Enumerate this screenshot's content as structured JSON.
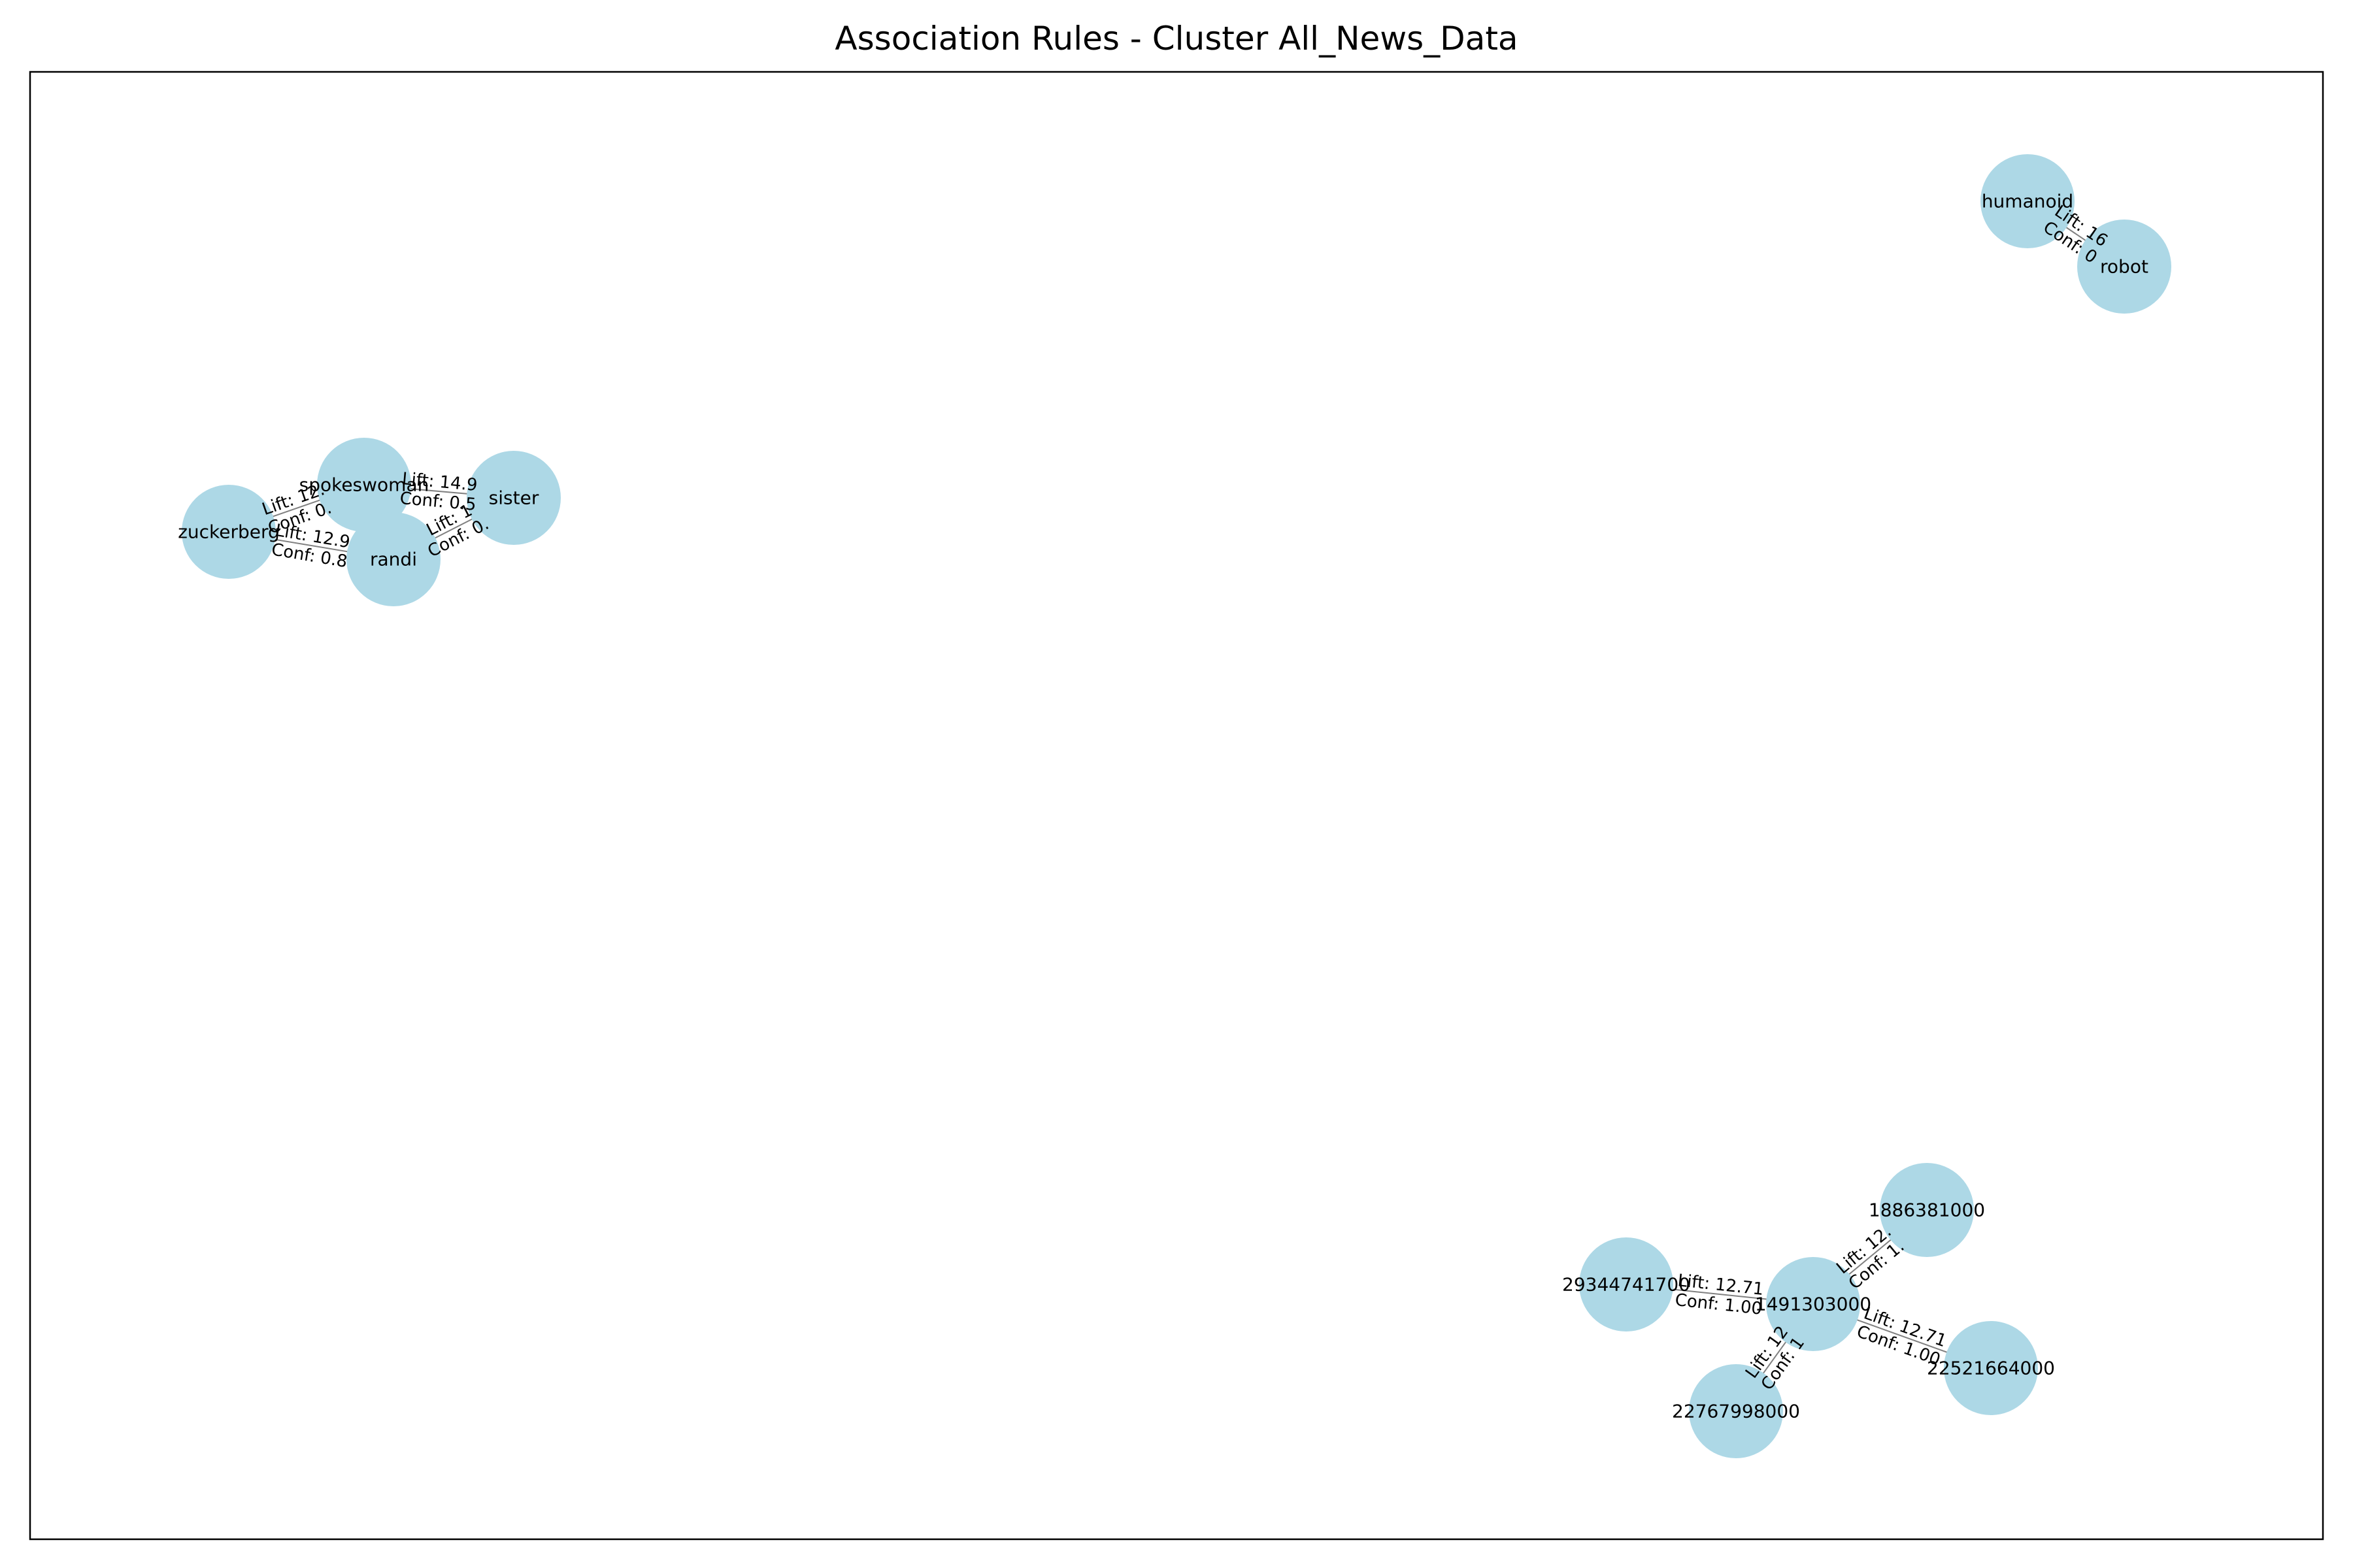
{
  "title": "Association Rules - Cluster All_News_Data",
  "colors": {
    "node_fill": "#add8e6",
    "edge": "#808080",
    "frame": "#000000",
    "background": "#ffffff"
  },
  "nodes": [
    {
      "id": "humanoid",
      "label": "humanoid"
    },
    {
      "id": "robot",
      "label": "robot"
    },
    {
      "id": "spokeswoman",
      "label": "spokeswoman"
    },
    {
      "id": "sister",
      "label": "sister"
    },
    {
      "id": "zuckerberg",
      "label": "zuckerberg"
    },
    {
      "id": "randi",
      "label": "randi"
    },
    {
      "id": "n1886381000",
      "label": "1886381000"
    },
    {
      "id": "n29344741700",
      "label": "29344741700"
    },
    {
      "id": "n1491303000",
      "label": "1491303000"
    },
    {
      "id": "n22521664000",
      "label": "22521664000"
    },
    {
      "id": "n22767998000",
      "label": "22767998000"
    }
  ],
  "edges": [
    {
      "source": "humanoid",
      "target": "robot",
      "lift_text": "Lift: 16",
      "conf_text": "Conf: 0"
    },
    {
      "source": "spokeswoman",
      "target": "sister",
      "lift_text": "Lift: 14.9",
      "conf_text": "Conf: 0.5"
    },
    {
      "source": "zuckerberg",
      "target": "spokeswoman",
      "lift_text": "Lift: 12.",
      "conf_text": "Conf: 0."
    },
    {
      "source": "zuckerberg",
      "target": "randi",
      "lift_text": "Lift: 12.9",
      "conf_text": "Conf: 0.8"
    },
    {
      "source": "randi",
      "target": "sister",
      "lift_text": "Lift: 1",
      "conf_text": "Conf: 0."
    },
    {
      "source": "n1491303000",
      "target": "n1886381000",
      "lift_text": "Lift: 12.",
      "conf_text": "Conf: 1."
    },
    {
      "source": "n29344741700",
      "target": "n1491303000",
      "lift_text": "Lift: 12.71",
      "conf_text": "Conf: 1.00"
    },
    {
      "source": "n1491303000",
      "target": "n22521664000",
      "lift_text": "Lift: 12.71",
      "conf_text": "Conf: 1.00"
    },
    {
      "source": "n22767998000",
      "target": "n1491303000",
      "lift_text": "Lift: 12",
      "conf_text": "Conf: 1"
    }
  ]
}
